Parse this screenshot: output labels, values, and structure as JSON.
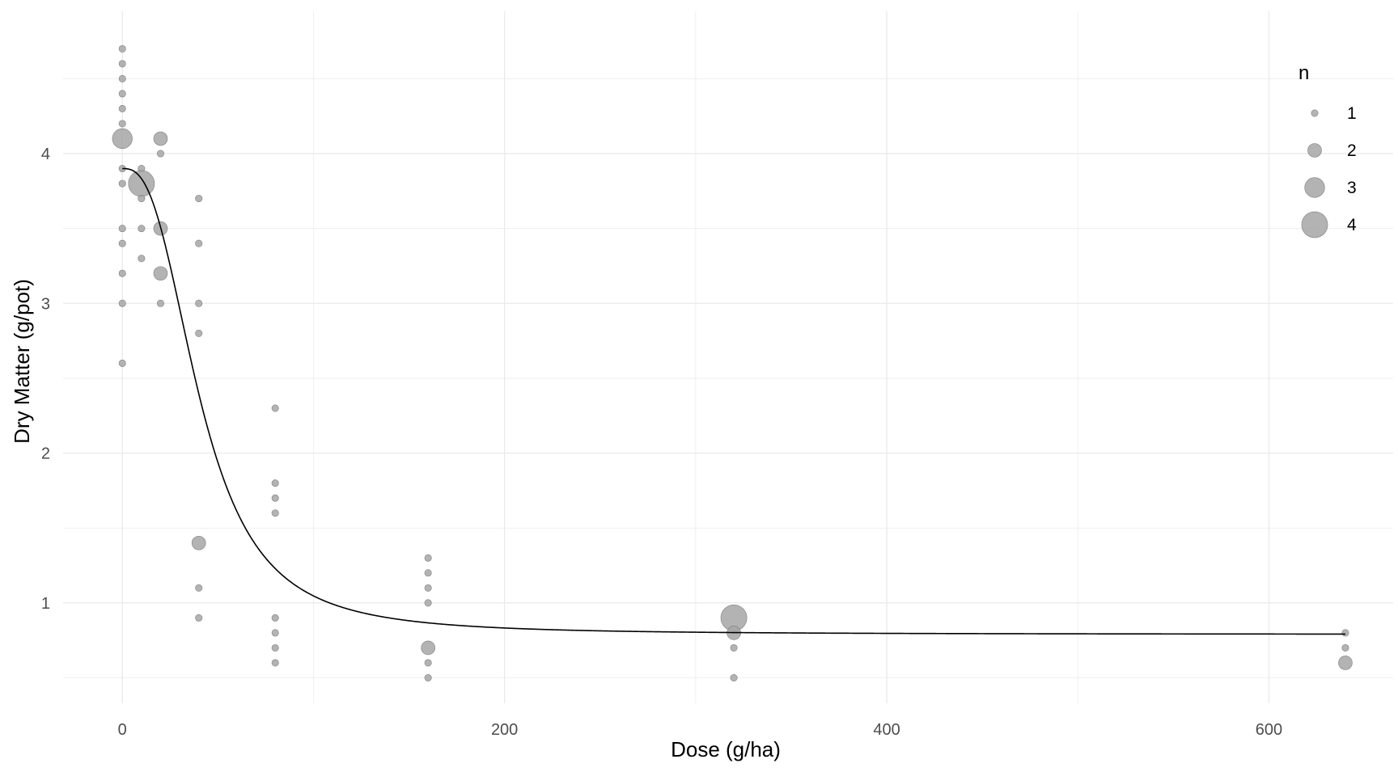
{
  "chart_data": {
    "type": "scatter",
    "title": "",
    "xlabel": "Dose (g/ha)",
    "ylabel": "Dry Matter (g/pot)",
    "xlim": [
      -31,
      665
    ],
    "ylim": [
      0.33,
      4.95
    ],
    "x_ticks": [
      0,
      200,
      400,
      600
    ],
    "y_ticks": [
      1,
      2,
      3,
      4
    ],
    "x_ticklabels": [
      "0",
      "200",
      "400",
      "600"
    ],
    "y_ticklabels": [
      "1",
      "2",
      "3",
      "4"
    ],
    "grid": true,
    "legend": {
      "title": "n",
      "position": "top-right",
      "entries": [
        {
          "n": 1,
          "label": "1"
        },
        {
          "n": 2,
          "label": "2"
        },
        {
          "n": 3,
          "label": "3"
        },
        {
          "n": 4,
          "label": "4"
        }
      ]
    },
    "points": [
      {
        "x": 0,
        "y": 4.7,
        "n": 1
      },
      {
        "x": 0,
        "y": 4.6,
        "n": 1
      },
      {
        "x": 0,
        "y": 4.5,
        "n": 1
      },
      {
        "x": 0,
        "y": 4.4,
        "n": 1
      },
      {
        "x": 0,
        "y": 4.3,
        "n": 1
      },
      {
        "x": 0,
        "y": 4.2,
        "n": 1
      },
      {
        "x": 0,
        "y": 4.1,
        "n": 3
      },
      {
        "x": 0,
        "y": 3.9,
        "n": 1
      },
      {
        "x": 0,
        "y": 3.8,
        "n": 1
      },
      {
        "x": 0,
        "y": 3.5,
        "n": 1
      },
      {
        "x": 0,
        "y": 3.4,
        "n": 1
      },
      {
        "x": 0,
        "y": 3.2,
        "n": 1
      },
      {
        "x": 0,
        "y": 3.0,
        "n": 1
      },
      {
        "x": 0,
        "y": 2.6,
        "n": 1
      },
      {
        "x": 10,
        "y": 3.9,
        "n": 1
      },
      {
        "x": 10,
        "y": 3.8,
        "n": 4
      },
      {
        "x": 10,
        "y": 3.7,
        "n": 1
      },
      {
        "x": 10,
        "y": 3.5,
        "n": 1
      },
      {
        "x": 10,
        "y": 3.3,
        "n": 1
      },
      {
        "x": 20,
        "y": 4.1,
        "n": 2
      },
      {
        "x": 20,
        "y": 4.0,
        "n": 1
      },
      {
        "x": 20,
        "y": 3.5,
        "n": 2
      },
      {
        "x": 20,
        "y": 3.2,
        "n": 2
      },
      {
        "x": 20,
        "y": 3.0,
        "n": 1
      },
      {
        "x": 40,
        "y": 3.7,
        "n": 1
      },
      {
        "x": 40,
        "y": 3.4,
        "n": 1
      },
      {
        "x": 40,
        "y": 3.0,
        "n": 1
      },
      {
        "x": 40,
        "y": 2.8,
        "n": 1
      },
      {
        "x": 40,
        "y": 1.4,
        "n": 2
      },
      {
        "x": 40,
        "y": 1.1,
        "n": 1
      },
      {
        "x": 40,
        "y": 0.9,
        "n": 1
      },
      {
        "x": 80,
        "y": 2.3,
        "n": 1
      },
      {
        "x": 80,
        "y": 1.8,
        "n": 1
      },
      {
        "x": 80,
        "y": 1.7,
        "n": 1
      },
      {
        "x": 80,
        "y": 1.6,
        "n": 1
      },
      {
        "x": 80,
        "y": 0.9,
        "n": 1
      },
      {
        "x": 80,
        "y": 0.8,
        "n": 1
      },
      {
        "x": 80,
        "y": 0.7,
        "n": 1
      },
      {
        "x": 80,
        "y": 0.6,
        "n": 1
      },
      {
        "x": 160,
        "y": 1.3,
        "n": 1
      },
      {
        "x": 160,
        "y": 1.2,
        "n": 1
      },
      {
        "x": 160,
        "y": 1.1,
        "n": 1
      },
      {
        "x": 160,
        "y": 1.0,
        "n": 1
      },
      {
        "x": 160,
        "y": 0.7,
        "n": 2
      },
      {
        "x": 160,
        "y": 0.6,
        "n": 1
      },
      {
        "x": 160,
        "y": 0.5,
        "n": 1
      },
      {
        "x": 320,
        "y": 0.9,
        "n": 4
      },
      {
        "x": 320,
        "y": 0.8,
        "n": 2
      },
      {
        "x": 320,
        "y": 0.7,
        "n": 1
      },
      {
        "x": 320,
        "y": 0.5,
        "n": 1
      },
      {
        "x": 640,
        "y": 0.8,
        "n": 1
      },
      {
        "x": 640,
        "y": 0.7,
        "n": 1
      },
      {
        "x": 640,
        "y": 0.6,
        "n": 2
      }
    ],
    "fit_curve": {
      "model": "log-logistic",
      "lower": 0.79,
      "upper": 3.9,
      "ed50": 41,
      "slope": 2.7
    },
    "colors": {
      "point_fill": "#a6a6a6",
      "point_stroke": "#7f7f7f",
      "curve": "#000000",
      "grid": "#ebebeb",
      "tick_text": "#4d4d4d"
    }
  }
}
